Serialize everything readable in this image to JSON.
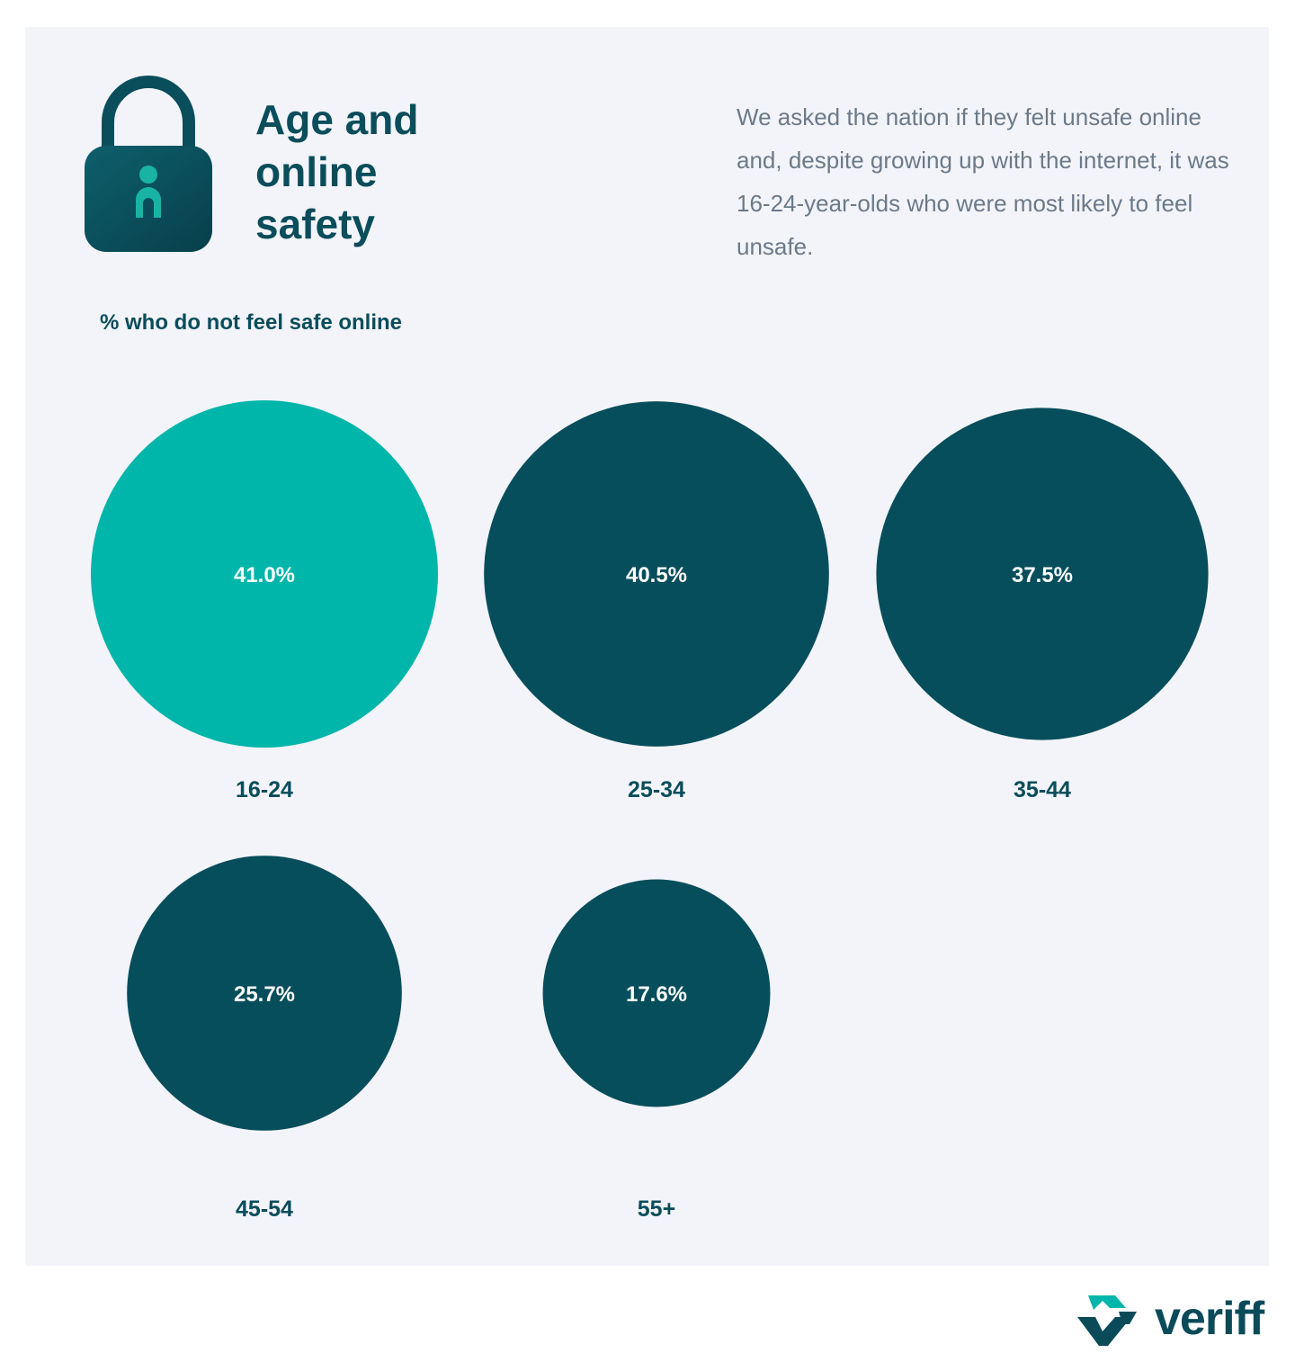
{
  "title": {
    "line1": "Age and",
    "line2": "online",
    "line3": "safety"
  },
  "description": "We asked the nation if they felt unsafe online and, despite growing up with the internet, it was 16-24-year-olds who were most likely to feel unsafe.",
  "subtitle": "% who do not feel safe online",
  "brand": {
    "name": "veriff"
  },
  "colors": {
    "accent": "#00b5aa",
    "primary": "#074e5c",
    "background": "#f3f4f9"
  },
  "icons": {
    "header": "lock-person-icon",
    "brand": "veriff-logo-icon"
  },
  "chart_data": {
    "type": "bubble",
    "title": "% who do not feel safe online",
    "categories": [
      "16-24",
      "25-34",
      "35-44",
      "45-54",
      "55+"
    ],
    "values": [
      41.0,
      40.5,
      37.5,
      25.7,
      17.6
    ],
    "value_labels": [
      "41.0%",
      "40.5%",
      "37.5%",
      "25.7%",
      "17.6%"
    ],
    "highlight": "16-24"
  }
}
